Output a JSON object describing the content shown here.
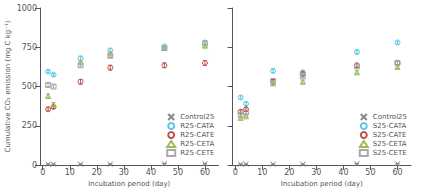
{
  "chart_data": [
    {
      "type": "scatter",
      "xlabel": "Incubation period (day)",
      "ylabel": "Cumulative CO₂ emission (mg C kg⁻¹)",
      "xlim": [
        -1,
        65
      ],
      "ylim": [
        0,
        1000
      ],
      "xticks": [
        0,
        10,
        20,
        30,
        40,
        50,
        60
      ],
      "yticks": [
        0,
        250,
        500,
        750,
        1000
      ],
      "grid": false,
      "legend": "lower right",
      "series": [
        {
          "name": "Control25",
          "color": "#888888",
          "marker": "x",
          "x": [
            2,
            4,
            14,
            25,
            45,
            60
          ],
          "values": [
            5,
            5,
            5,
            5,
            8,
            8
          ],
          "yerr": [
            1,
            1,
            1,
            1,
            1,
            1
          ]
        },
        {
          "name": "R25-CATA",
          "color": "#5bc8e8",
          "marker": "circle",
          "x": [
            2,
            4,
            14,
            25,
            45,
            60
          ],
          "values": [
            595,
            575,
            680,
            730,
            755,
            780
          ],
          "yerr": [
            8,
            8,
            12,
            10,
            8,
            12
          ]
        },
        {
          "name": "R25-CATE",
          "color": "#c0504d",
          "marker": "circle",
          "x": [
            2,
            4,
            14,
            25,
            45,
            60
          ],
          "values": [
            355,
            370,
            530,
            620,
            635,
            650
          ],
          "yerr": [
            10,
            10,
            15,
            15,
            15,
            15
          ]
        },
        {
          "name": "R25-CETA",
          "color": "#9bbb59",
          "marker": "triangle",
          "x": [
            2,
            4,
            14,
            25,
            45,
            60
          ],
          "values": [
            440,
            385,
            655,
            710,
            745,
            760
          ],
          "yerr": [
            12,
            12,
            10,
            10,
            10,
            10
          ]
        },
        {
          "name": "R25-CETE",
          "color": "#aaaaaa",
          "marker": "square",
          "x": [
            2,
            4,
            14,
            25,
            45,
            60
          ],
          "values": [
            510,
            500,
            635,
            695,
            745,
            775
          ],
          "yerr": [
            10,
            10,
            10,
            10,
            10,
            10
          ]
        }
      ]
    },
    {
      "type": "scatter",
      "xlabel": "Incubation period (day)",
      "xlim": [
        -1,
        65
      ],
      "ylim": [
        0,
        1000
      ],
      "xticks": [
        0,
        10,
        20,
        30,
        40,
        50,
        60
      ],
      "yticks": [
        0,
        250,
        500,
        750,
        1000
      ],
      "grid": false,
      "tick_labels": "x",
      "legend": "lower right",
      "series": [
        {
          "name": "Control25",
          "color": "#888888",
          "marker": "x",
          "x": [
            2,
            4,
            14,
            25,
            45,
            60
          ],
          "values": [
            5,
            5,
            5,
            5,
            8,
            8
          ],
          "yerr": [
            1,
            1,
            1,
            1,
            1,
            1
          ]
        },
        {
          "name": "S25-CATA",
          "color": "#5bc8e8",
          "marker": "circle",
          "x": [
            2,
            4,
            14,
            25,
            45,
            60
          ],
          "values": [
            430,
            390,
            600,
            590,
            720,
            780
          ],
          "yerr": [
            10,
            10,
            10,
            10,
            10,
            10
          ]
        },
        {
          "name": "S25-CATE",
          "color": "#c0504d",
          "marker": "circle",
          "x": [
            2,
            4,
            14,
            25,
            45,
            60
          ],
          "values": [
            340,
            355,
            530,
            580,
            635,
            650
          ],
          "yerr": [
            10,
            10,
            12,
            12,
            12,
            12
          ]
        },
        {
          "name": "S25-CETA",
          "color": "#9bbb59",
          "marker": "triangle",
          "x": [
            2,
            4,
            14,
            25,
            45,
            60
          ],
          "values": [
            300,
            310,
            520,
            530,
            590,
            625
          ],
          "yerr": [
            8,
            8,
            10,
            10,
            10,
            10
          ]
        },
        {
          "name": "S25-CETE",
          "color": "#aaaaaa",
          "marker": "square",
          "x": [
            2,
            4,
            14,
            25,
            45,
            60
          ],
          "values": [
            320,
            335,
            535,
            565,
            628,
            650
          ],
          "yerr": [
            8,
            8,
            10,
            10,
            10,
            10
          ]
        }
      ]
    }
  ]
}
